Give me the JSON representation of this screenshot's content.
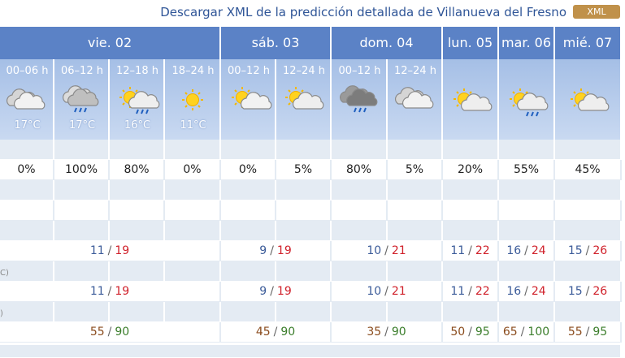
{
  "header": {
    "link": "Descargar XML de la predicción detallada de Villanueva del Fresno",
    "button": "XML"
  },
  "table": {
    "days": [
      {
        "name": "vie. 02",
        "periods": [
          {
            "label": "00–06 h",
            "temp": "17°C"
          },
          {
            "label": "06–12 h",
            "temp": "17°C"
          },
          {
            "label": "12–18 h",
            "temp": "16°C"
          },
          {
            "label": "18–24 h",
            "temp": "11°C"
          }
        ]
      },
      {
        "name": "sáb. 03",
        "periods": [
          {
            "label": "00–12 h"
          },
          {
            "label": "12–24 h"
          }
        ]
      },
      {
        "name": "dom. 04",
        "periods": [
          {
            "label": "00–12 h"
          },
          {
            "label": "12–24 h"
          }
        ]
      },
      {
        "name": "lun. 05"
      },
      {
        "name": "mar. 06"
      },
      {
        "name": "mié. 07"
      }
    ],
    "precipitation": [
      "0%",
      "100%",
      "80%",
      "0%",
      "0%",
      "5%",
      "80%",
      "5%",
      "20%",
      "55%",
      "45%"
    ],
    "separator": "/",
    "temperature": [
      {
        "min": 11,
        "max": 19
      },
      {
        "min": 9,
        "max": 19
      },
      {
        "min": 10,
        "max": 21
      },
      {
        "min": 11,
        "max": 22
      },
      {
        "min": 16,
        "max": 24
      },
      {
        "min": 15,
        "max": 26
      }
    ],
    "row_label_1": "C)",
    "feels_like": [
      {
        "min": 11,
        "max": 19
      },
      {
        "min": 9,
        "max": 19
      },
      {
        "min": 10,
        "max": 21
      },
      {
        "min": 11,
        "max": 22
      },
      {
        "min": 16,
        "max": 24
      },
      {
        "min": 15,
        "max": 26
      }
    ],
    "row_label_2": ")",
    "humidity": [
      {
        "min": 55,
        "max": 90
      },
      {
        "min": 45,
        "max": 90
      },
      {
        "min": 35,
        "max": 90
      },
      {
        "min": 50,
        "max": 95
      },
      {
        "min": 65,
        "max": 100
      },
      {
        "min": 55,
        "max": 95
      }
    ]
  }
}
